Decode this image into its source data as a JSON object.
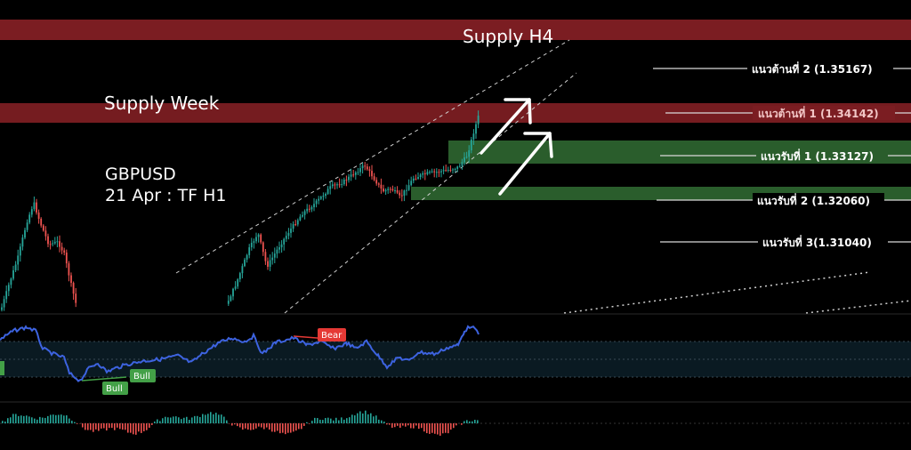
{
  "colors": {
    "background": "#000000",
    "supply_zone": "#7b1d22",
    "demand_zone": "#2a5d2c",
    "candle_up": "#26a69a",
    "candle_down": "#ef5350",
    "rsi_line": "#3d63e0",
    "bear_badge": "#e53935",
    "bull_badge": "#43a047",
    "level_line": "#d9d9d9",
    "text": "#ffffff"
  },
  "zones": {
    "supply_h4_label": "Supply H4",
    "supply_week_label": "Supply Week"
  },
  "info": {
    "symbol": "GBPUSD",
    "subtitle": "21 Apr : TF H1"
  },
  "levels": [
    {
      "label": "แนวต้านที่ 2 (1.35167)",
      "value": 1.35167
    },
    {
      "label": "แนวต้านที่ 1 (1.34142)",
      "value": 1.34142
    },
    {
      "label": "แนวรับที่ 1 (1.33127)",
      "value": 1.33127
    },
    {
      "label": "แนวรับที่ 2 (1.32060)",
      "value": 1.3206
    },
    {
      "label": "แนวรับที่ 3(1.31040)",
      "value": 1.3104
    }
  ],
  "indicators": {
    "bear_label": "Bear",
    "bull_label_1": "Bull",
    "bull_label_2": "Bull"
  },
  "icons": [
    "up-arrow-icon",
    "up-arrow-icon"
  ]
}
